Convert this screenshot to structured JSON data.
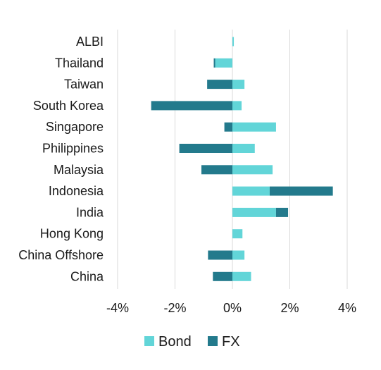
{
  "chart_data": {
    "type": "bar",
    "orientation": "horizontal",
    "stacked": true,
    "categories": [
      "ALBI",
      "Thailand",
      "Taiwan",
      "South Korea",
      "Singapore",
      "Philippines",
      "Malaysia",
      "Indonesia",
      "India",
      "Hong Kong",
      "China Offshore",
      "China"
    ],
    "series": [
      {
        "name": "Bond",
        "color": "#62d5d8",
        "values": [
          0.05,
          -0.6,
          0.42,
          0.32,
          1.52,
          0.78,
          1.4,
          1.3,
          1.52,
          0.35,
          0.42,
          0.65
        ]
      },
      {
        "name": "FX",
        "color": "#237a8c",
        "values": [
          0.0,
          -0.05,
          -0.88,
          -2.83,
          -0.28,
          -1.85,
          -1.08,
          2.2,
          0.42,
          0.0,
          -0.85,
          -0.68
        ]
      }
    ],
    "xlim": [
      -4,
      4.2
    ],
    "xticks": [
      -4,
      -2,
      0,
      2,
      4
    ],
    "xtick_labels": [
      "-4%",
      "-2%",
      "0%",
      "2%",
      "4%"
    ],
    "grid": true,
    "legend_position": "bottom-center"
  }
}
